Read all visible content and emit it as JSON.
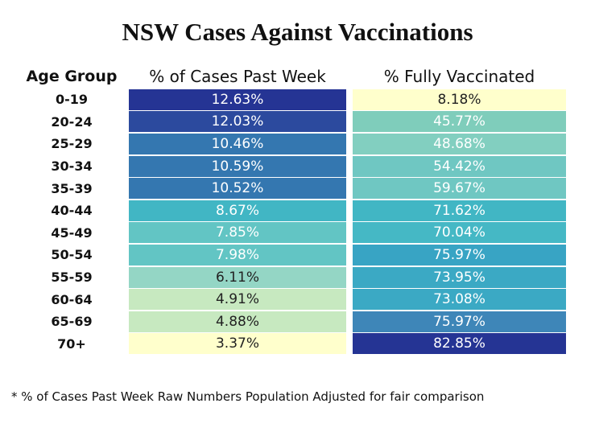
{
  "title": "NSW Cases Against Vaccinations",
  "table": {
    "header": [
      "Age Group",
      "% of Cases Past Week",
      "% Fully Vaccinated"
    ],
    "rows": [
      [
        "0-19",
        "12.63%",
        "8.18%"
      ],
      [
        "20-24",
        "12.03%",
        "45.77%"
      ],
      [
        "25-29",
        "10.46%",
        "48.68%"
      ],
      [
        "30-34",
        "10.59%",
        "54.42%"
      ],
      [
        "35-39",
        "10.52%",
        "59.67%"
      ],
      [
        "40-44",
        "8.67%",
        "71.62%"
      ],
      [
        "45-49",
        "7.85%",
        "70.04%"
      ],
      [
        "50-54",
        "7.98%",
        "75.97%"
      ],
      [
        "55-59",
        "6.11%",
        "73.95%"
      ],
      [
        "60-64",
        "4.91%",
        "73.08%"
      ],
      [
        "65-69",
        "4.88%",
        "75.97%"
      ],
      [
        "70+",
        "3.37%",
        "82.85%"
      ]
    ],
    "cell_colors": [
      [
        "#253494",
        "#ffffcc"
      ],
      [
        "#2c4a9e",
        "#7fcdbb"
      ],
      [
        "#3477b0",
        "#82cfc0"
      ],
      [
        "#3477b0",
        "#6fc7c2"
      ],
      [
        "#3477b0",
        "#6fc7c2"
      ],
      [
        "#41b6c4",
        "#41b6c4"
      ],
      [
        "#62c5c4",
        "#45b8c5"
      ],
      [
        "#62c5c4",
        "#38a4c4"
      ],
      [
        "#94d6c5",
        "#3ba9c4"
      ],
      [
        "#c7e9c0",
        "#3ba9c4"
      ],
      [
        "#c7e9c0",
        "#3e86b8"
      ],
      [
        "#ffffcc",
        "#253494"
      ]
    ]
  },
  "footnote": "* % of Cases Past Week Raw Numbers Population Adjusted for fair comparison"
}
